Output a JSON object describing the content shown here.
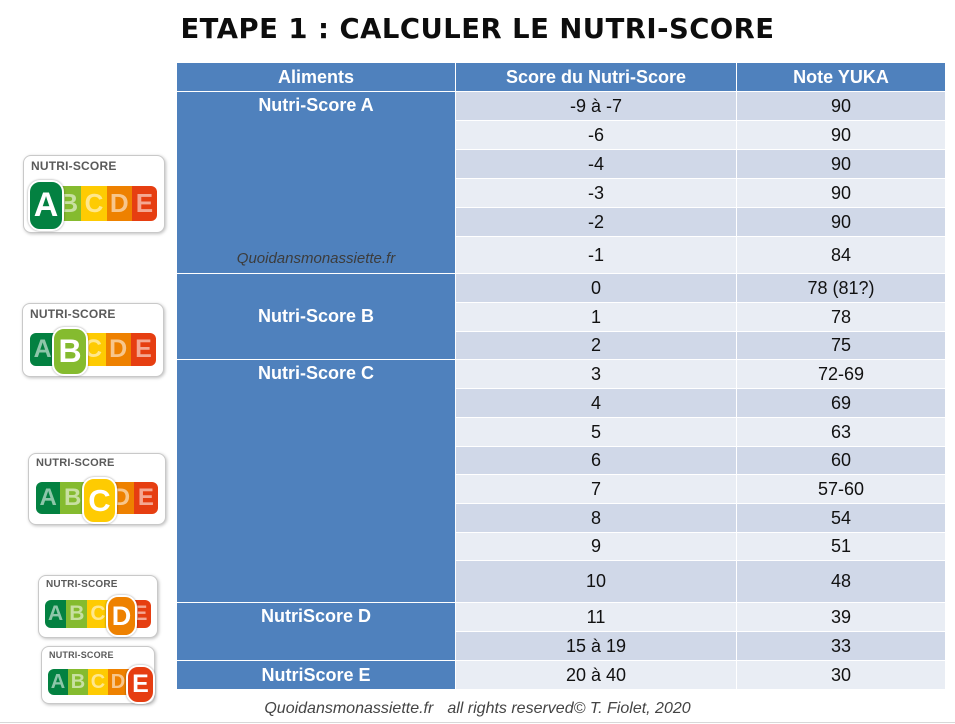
{
  "title": "ETAPE 1 : CALCULER LE NUTRI-SCORE",
  "table": {
    "headers": [
      "Aliments",
      "Score du Nutri-Score",
      "Note YUKA"
    ],
    "groups": {
      "a": "Nutri-Score A",
      "b": "Nutri-Score B",
      "c": "Nutri-Score C",
      "d": "NutriScore D",
      "e": "NutriScore E"
    },
    "watermark": "Quoidansmonassiette.fr",
    "rows": [
      {
        "score": "-9 à -7",
        "yuka": "90"
      },
      {
        "score": "-6",
        "yuka": "90"
      },
      {
        "score": "-4",
        "yuka": "90"
      },
      {
        "score": "-3",
        "yuka": "90"
      },
      {
        "score": "-2",
        "yuka": "90"
      },
      {
        "score": "-1",
        "yuka": "84"
      },
      {
        "score": "0",
        "yuka": "78 (81?)"
      },
      {
        "score": "1",
        "yuka": "78"
      },
      {
        "score": "2",
        "yuka": "75"
      },
      {
        "score": "3",
        "yuka": "72-69"
      },
      {
        "score": "4",
        "yuka": "69"
      },
      {
        "score": "5",
        "yuka": "63"
      },
      {
        "score": "6",
        "yuka": "60"
      },
      {
        "score": "7",
        "yuka": "57-60"
      },
      {
        "score": "8",
        "yuka": "54"
      },
      {
        "score": "9",
        "yuka": "51"
      },
      {
        "score": "10",
        "yuka": "48"
      },
      {
        "score": "11",
        "yuka": "39"
      },
      {
        "score": "15 à 19",
        "yuka": "33"
      },
      {
        "score": "20 à 40",
        "yuka": "30"
      }
    ]
  },
  "badges": {
    "label": "NUTRI-SCORE",
    "letters": [
      "A",
      "B",
      "C",
      "D",
      "E"
    ],
    "colors": [
      "#038141",
      "#85bb2f",
      "#fecb02",
      "#ee8100",
      "#e63e11"
    ],
    "highlighted": [
      "A",
      "B",
      "C",
      "D",
      "E"
    ]
  },
  "footer": {
    "site": "Quoidansmonassiette.fr",
    "rights": "all rights reserved© T. Fiolet, 2020"
  }
}
